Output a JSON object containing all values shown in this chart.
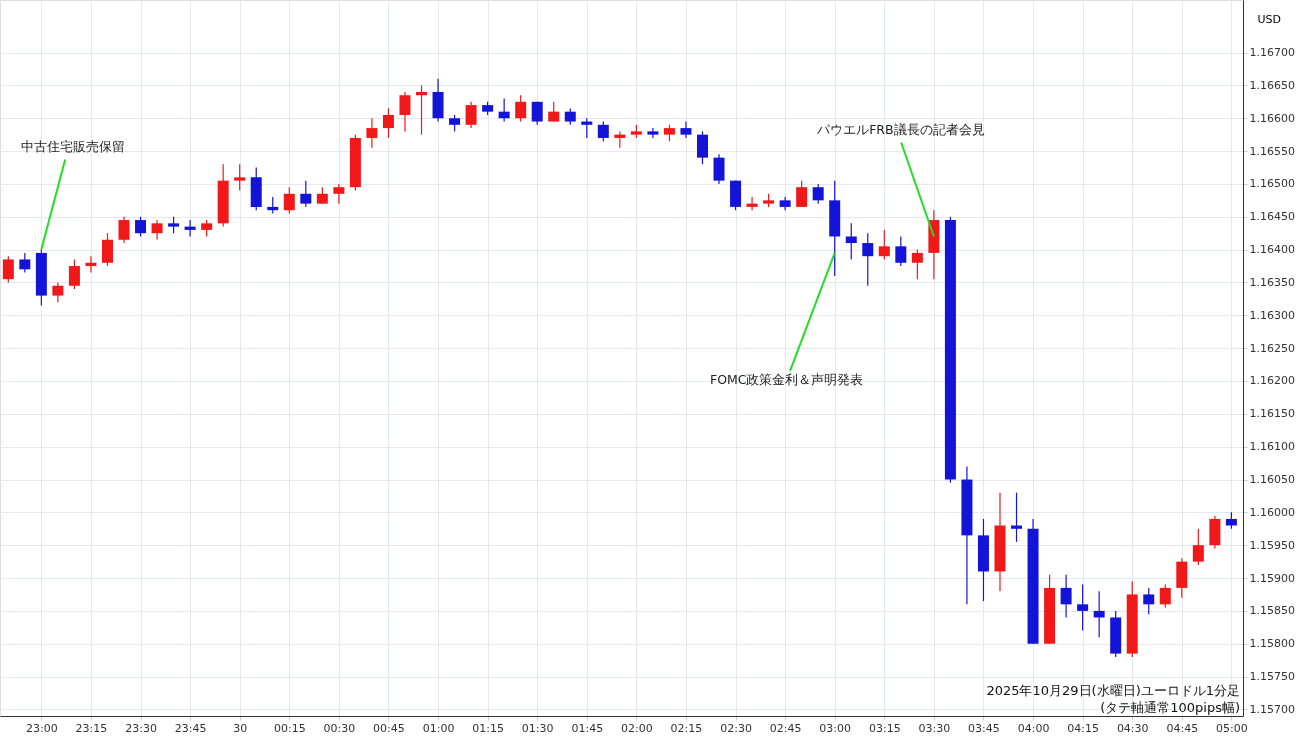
{
  "chart_data": {
    "type": "candlestick",
    "ylabel": "USD",
    "annotations": [
      {
        "text": "中古住宅販売保留",
        "x": "2025-10-29T23:00",
        "y": 1.164
      },
      {
        "text": "FOMC政策金利＆声明発表",
        "x": "2025-10-30T03:00",
        "y": 1.16395
      },
      {
        "text": "パウエルFRB議長の記者会見",
        "x": "2025-10-30T03:30",
        "y": 1.1642
      },
      "2025年10月29日(水曜日)ユーロドル1分足",
      "(タテ軸通常100pips幅)"
    ],
    "x": [
      "2025-10-29T22:50",
      "2025-10-29T22:55",
      "2025-10-29T23:00",
      "2025-10-29T23:05",
      "2025-10-29T23:10",
      "2025-10-29T23:15",
      "2025-10-29T23:20",
      "2025-10-29T23:25",
      "2025-10-29T23:30",
      "2025-10-29T23:35",
      "2025-10-29T23:40",
      "2025-10-29T23:45",
      "2025-10-29T23:50",
      "2025-10-29T23:55",
      "2025-10-30T00:00",
      "2025-10-30T00:05",
      "2025-10-30T00:10",
      "2025-10-30T00:15",
      "2025-10-30T00:20",
      "2025-10-30T00:25",
      "2025-10-30T00:30",
      "2025-10-30T00:35",
      "2025-10-30T00:40",
      "2025-10-30T00:45",
      "2025-10-30T00:50",
      "2025-10-30T00:55",
      "2025-10-30T01:00",
      "2025-10-30T01:05",
      "2025-10-30T01:10",
      "2025-10-30T01:15",
      "2025-10-30T01:20",
      "2025-10-30T01:25",
      "2025-10-30T01:30",
      "2025-10-30T01:35",
      "2025-10-30T01:40",
      "2025-10-30T01:45",
      "2025-10-30T01:50",
      "2025-10-30T01:55",
      "2025-10-30T02:00",
      "2025-10-30T02:05",
      "2025-10-30T02:10",
      "2025-10-30T02:15",
      "2025-10-30T02:20",
      "2025-10-30T02:25",
      "2025-10-30T02:30",
      "2025-10-30T02:35",
      "2025-10-30T02:40",
      "2025-10-30T02:45",
      "2025-10-30T02:50",
      "2025-10-30T02:55",
      "2025-10-30T03:00",
      "2025-10-30T03:05",
      "2025-10-30T03:10",
      "2025-10-30T03:15",
      "2025-10-30T03:20",
      "2025-10-30T03:25",
      "2025-10-30T03:30",
      "2025-10-30T03:35",
      "2025-10-30T03:40",
      "2025-10-30T03:45",
      "2025-10-30T03:50",
      "2025-10-30T03:55",
      "2025-10-30T04:00",
      "2025-10-30T04:05",
      "2025-10-30T04:10",
      "2025-10-30T04:15",
      "2025-10-30T04:20",
      "2025-10-30T04:25",
      "2025-10-30T04:30",
      "2025-10-30T04:35",
      "2025-10-30T04:40",
      "2025-10-30T04:45",
      "2025-10-30T04:50",
      "2025-10-30T04:55",
      "2025-10-30T05:00"
    ],
    "ohlc": [
      [
        1.16355,
        1.1639,
        1.1635,
        1.16385
      ],
      [
        1.16385,
        1.16395,
        1.16365,
        1.1637
      ],
      [
        1.16395,
        1.164,
        1.16315,
        1.1633
      ],
      [
        1.1633,
        1.1635,
        1.1632,
        1.16345
      ],
      [
        1.16345,
        1.16385,
        1.1634,
        1.16375
      ],
      [
        1.16375,
        1.1639,
        1.16365,
        1.1638
      ],
      [
        1.1638,
        1.16425,
        1.16375,
        1.16415
      ],
      [
        1.16415,
        1.1645,
        1.1641,
        1.16445
      ],
      [
        1.16445,
        1.1645,
        1.1642,
        1.16425
      ],
      [
        1.16425,
        1.16445,
        1.16415,
        1.1644
      ],
      [
        1.1644,
        1.1645,
        1.16425,
        1.16435
      ],
      [
        1.16435,
        1.16445,
        1.1642,
        1.1643
      ],
      [
        1.1643,
        1.16445,
        1.1642,
        1.1644
      ],
      [
        1.1644,
        1.1653,
        1.16435,
        1.16505
      ],
      [
        1.16505,
        1.1653,
        1.1649,
        1.1651
      ],
      [
        1.1651,
        1.16525,
        1.1646,
        1.16465
      ],
      [
        1.16465,
        1.1648,
        1.16455,
        1.1646
      ],
      [
        1.1646,
        1.16495,
        1.16455,
        1.16485
      ],
      [
        1.16485,
        1.16505,
        1.16465,
        1.1647
      ],
      [
        1.1647,
        1.16495,
        1.1647,
        1.16485
      ],
      [
        1.16485,
        1.165,
        1.1647,
        1.16495
      ],
      [
        1.16495,
        1.16575,
        1.1649,
        1.1657
      ],
      [
        1.1657,
        1.166,
        1.16555,
        1.16585
      ],
      [
        1.16585,
        1.16615,
        1.1657,
        1.16605
      ],
      [
        1.16605,
        1.1664,
        1.1658,
        1.16635
      ],
      [
        1.16635,
        1.1665,
        1.16575,
        1.1664
      ],
      [
        1.1664,
        1.1666,
        1.16595,
        1.166
      ],
      [
        1.166,
        1.16605,
        1.1658,
        1.1659
      ],
      [
        1.1659,
        1.16625,
        1.16585,
        1.1662
      ],
      [
        1.1662,
        1.16625,
        1.16605,
        1.1661
      ],
      [
        1.1661,
        1.1663,
        1.16595,
        1.166
      ],
      [
        1.166,
        1.16635,
        1.16595,
        1.16625
      ],
      [
        1.16625,
        1.16625,
        1.1659,
        1.16595
      ],
      [
        1.16595,
        1.16625,
        1.16595,
        1.1661
      ],
      [
        1.1661,
        1.16615,
        1.1659,
        1.16595
      ],
      [
        1.16595,
        1.166,
        1.1657,
        1.1659
      ],
      [
        1.1659,
        1.16595,
        1.16565,
        1.1657
      ],
      [
        1.1657,
        1.1658,
        1.16555,
        1.16575
      ],
      [
        1.16575,
        1.1659,
        1.1657,
        1.1658
      ],
      [
        1.1658,
        1.16585,
        1.1657,
        1.16575
      ],
      [
        1.16575,
        1.1659,
        1.16565,
        1.16585
      ],
      [
        1.16585,
        1.16595,
        1.1657,
        1.16575
      ],
      [
        1.16575,
        1.1658,
        1.1653,
        1.1654
      ],
      [
        1.1654,
        1.16545,
        1.165,
        1.16505
      ],
      [
        1.16505,
        1.16505,
        1.1646,
        1.16465
      ],
      [
        1.16465,
        1.1648,
        1.1646,
        1.1647
      ],
      [
        1.1647,
        1.16485,
        1.16465,
        1.16475
      ],
      [
        1.16475,
        1.1648,
        1.1646,
        1.16465
      ],
      [
        1.16465,
        1.16505,
        1.16465,
        1.16495
      ],
      [
        1.16495,
        1.165,
        1.1647,
        1.16475
      ],
      [
        1.16475,
        1.16505,
        1.1636,
        1.1642
      ],
      [
        1.1642,
        1.1644,
        1.16385,
        1.1641
      ],
      [
        1.1641,
        1.16425,
        1.16345,
        1.1639
      ],
      [
        1.1639,
        1.1643,
        1.16385,
        1.16405
      ],
      [
        1.16405,
        1.1642,
        1.16375,
        1.1638
      ],
      [
        1.1638,
        1.164,
        1.16355,
        1.16395
      ],
      [
        1.16395,
        1.1646,
        1.16355,
        1.16445
      ],
      [
        1.16445,
        1.1645,
        1.16045,
        1.1605
      ],
      [
        1.1605,
        1.1607,
        1.1586,
        1.15965
      ],
      [
        1.15965,
        1.1599,
        1.15865,
        1.1591
      ],
      [
        1.1591,
        1.1603,
        1.1588,
        1.1598
      ],
      [
        1.1598,
        1.1603,
        1.15955,
        1.15975
      ],
      [
        1.15975,
        1.1599,
        1.158,
        1.158
      ],
      [
        1.158,
        1.15905,
        1.158,
        1.15885
      ],
      [
        1.15885,
        1.15905,
        1.1584,
        1.1586
      ],
      [
        1.1586,
        1.1589,
        1.1582,
        1.1585
      ],
      [
        1.1585,
        1.1588,
        1.1581,
        1.1584
      ],
      [
        1.1584,
        1.1585,
        1.1578,
        1.15785
      ],
      [
        1.15785,
        1.15895,
        1.1578,
        1.15875
      ],
      [
        1.15875,
        1.15885,
        1.15845,
        1.1586
      ],
      [
        1.1586,
        1.1589,
        1.15855,
        1.15885
      ],
      [
        1.15885,
        1.1593,
        1.1587,
        1.15925
      ],
      [
        1.15925,
        1.15975,
        1.1592,
        1.1595
      ],
      [
        1.1595,
        1.15995,
        1.15945,
        1.1599
      ],
      [
        1.1599,
        1.16,
        1.15975,
        1.1598
      ]
    ],
    "colors": [
      "#f01818",
      "#1414d8",
      "#1414d8",
      "#f01818",
      "#f01818",
      "#f01818",
      "#f01818",
      "#f01818",
      "#1414d8",
      "#f01818",
      "#1414d8",
      "#1414d8",
      "#f01818",
      "#f01818",
      "#f01818",
      "#1414d8",
      "#1414d8",
      "#f01818",
      "#1414d8",
      "#f01818",
      "#f01818",
      "#f01818",
      "#f01818",
      "#f01818",
      "#f01818",
      "#f01818",
      "#1414d8",
      "#1414d8",
      "#f01818",
      "#1414d8",
      "#1414d8",
      "#f01818",
      "#1414d8",
      "#f01818",
      "#1414d8",
      "#1414d8",
      "#1414d8",
      "#f01818",
      "#f01818",
      "#1414d8",
      "#f01818",
      "#1414d8",
      "#1414d8",
      "#1414d8",
      "#1414d8",
      "#f01818",
      "#f01818",
      "#1414d8",
      "#f01818",
      "#1414d8",
      "#1414d8",
      "#1414d8",
      "#1414d8",
      "#f01818",
      "#1414d8",
      "#f01818",
      "#f01818",
      "#1414d8",
      "#1414d8",
      "#1414d8",
      "#f01818",
      "#1414d8",
      "#1414d8",
      "#f01818",
      "#1414d8",
      "#1414d8",
      "#1414d8",
      "#1414d8",
      "#f01818",
      "#1414d8",
      "#f01818",
      "#f01818",
      "#f01818",
      "#f01818",
      "#1414d8"
    ],
    "xlim": [
      "2025-10-29T22:49",
      "2025-10-30T05:02"
    ],
    "xticks": [
      {
        "value": "2025-10-29T23:00",
        "label": "23:00"
      },
      {
        "value": "2025-10-29T23:15",
        "label": "23:15"
      },
      {
        "value": "2025-10-29T23:30",
        "label": "23:30"
      },
      {
        "value": "2025-10-29T23:45",
        "label": "23:45"
      },
      {
        "value": "2025-10-30T00:00",
        "label": "30"
      },
      {
        "value": "2025-10-30T00:15",
        "label": "00:15"
      },
      {
        "value": "2025-10-30T00:30",
        "label": "00:30"
      },
      {
        "value": "2025-10-30T00:45",
        "label": "00:45"
      },
      {
        "value": "2025-10-30T01:00",
        "label": "01:00"
      },
      {
        "value": "2025-10-30T01:15",
        "label": "01:15"
      },
      {
        "value": "2025-10-30T01:30",
        "label": "01:30"
      },
      {
        "value": "2025-10-30T01:45",
        "label": "01:45"
      },
      {
        "value": "2025-10-30T02:00",
        "label": "02:00"
      },
      {
        "value": "2025-10-30T02:15",
        "label": "02:15"
      },
      {
        "value": "2025-10-30T02:30",
        "label": "02:30"
      },
      {
        "value": "2025-10-30T02:45",
        "label": "02:45"
      },
      {
        "value": "2025-10-30T03:00",
        "label": "03:00"
      },
      {
        "value": "2025-10-30T03:15",
        "label": "03:15"
      },
      {
        "value": "2025-10-30T03:30",
        "label": "03:30"
      },
      {
        "value": "2025-10-30T03:45",
        "label": "03:45"
      },
      {
        "value": "2025-10-30T04:00",
        "label": "04:00"
      },
      {
        "value": "2025-10-30T04:15",
        "label": "04:15"
      },
      {
        "value": "2025-10-30T04:30",
        "label": "04:30"
      },
      {
        "value": "2025-10-30T04:45",
        "label": "04:45"
      },
      {
        "value": "2025-10-30T05:00",
        "label": "05:00"
      }
    ],
    "ylim": [
      1.1569,
      1.1678
    ],
    "yticks": [
      {
        "value": 1.157,
        "label": "1.15700"
      },
      {
        "value": 1.1575,
        "label": "1.15750"
      },
      {
        "value": 1.158,
        "label": "1.15800"
      },
      {
        "value": 1.1585,
        "label": "1.15850"
      },
      {
        "value": 1.159,
        "label": "1.15900"
      },
      {
        "value": 1.1595,
        "label": "1.15950"
      },
      {
        "value": 1.16,
        "label": "1.16000"
      },
      {
        "value": 1.1605,
        "label": "1.16050"
      },
      {
        "value": 1.161,
        "label": "1.16100"
      },
      {
        "value": 1.1615,
        "label": "1.16150"
      },
      {
        "value": 1.162,
        "label": "1.16200"
      },
      {
        "value": 1.1625,
        "label": "1.16250"
      },
      {
        "value": 1.163,
        "label": "1.16300"
      },
      {
        "value": 1.1635,
        "label": "1.16350"
      },
      {
        "value": 1.164,
        "label": "1.16400"
      },
      {
        "value": 1.1645,
        "label": "1.16450"
      },
      {
        "value": 1.165,
        "label": "1.16500"
      },
      {
        "value": 1.1655,
        "label": "1.16550"
      },
      {
        "value": 1.166,
        "label": "1.16600"
      },
      {
        "value": 1.1665,
        "label": "1.16650"
      },
      {
        "value": 1.167,
        "label": "1.16700"
      }
    ],
    "grid": true
  }
}
